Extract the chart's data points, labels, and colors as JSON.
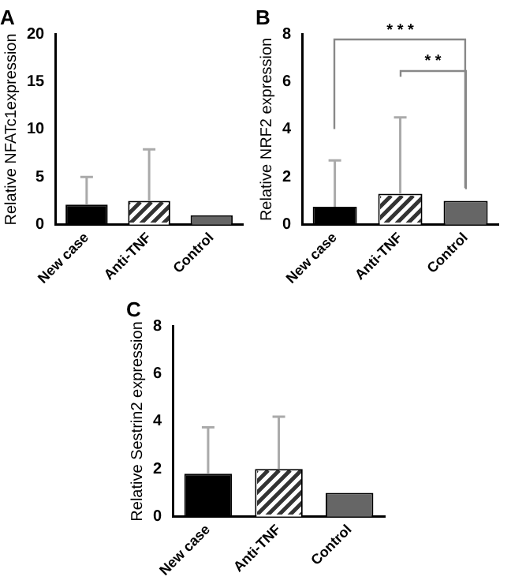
{
  "chart_data": [
    {
      "type": "bar",
      "title": "A",
      "ylabel": "Relative NFATc1expression",
      "categories": [
        "New case",
        "Anti-TNF",
        "Control"
      ],
      "colors": [
        "#000000",
        "#ffffff",
        "#666666"
      ],
      "values": [
        2.1,
        2.5,
        1.0
      ],
      "errors": [
        [
          2.1,
          5.0
        ],
        [
          2.5,
          7.9
        ],
        null
      ],
      "ylim": [
        0,
        20
      ],
      "yticks": [
        0,
        5,
        10,
        15,
        20
      ],
      "grid": false,
      "legend": false
    },
    {
      "type": "bar",
      "title": "B",
      "ylabel": "Relative NRF2 expression",
      "categories": [
        "New case",
        "Anti-TNF",
        "Control"
      ],
      "colors": [
        "#000000",
        "#ffffff",
        "#666666"
      ],
      "values": [
        0.75,
        1.3,
        1.0
      ],
      "errors": [
        [
          0.75,
          2.7
        ],
        [
          1.3,
          4.5
        ],
        null
      ],
      "ylim": [
        0,
        8
      ],
      "yticks": [
        0,
        2,
        4,
        6,
        8
      ],
      "grid": false,
      "legend": false,
      "annotations": [
        "* * *",
        "* *"
      ]
    },
    {
      "type": "bar",
      "title": "C",
      "ylabel": "Relative Sestrin2 expression",
      "categories": [
        "New case",
        "Anti-TNF",
        "Control"
      ],
      "colors": [
        "#000000",
        "#ffffff",
        "#666666"
      ],
      "values": [
        1.8,
        2.0,
        1.0
      ],
      "errors": [
        [
          1.8,
          3.75
        ],
        [
          2.0,
          4.2
        ],
        null
      ],
      "ylim": [
        0,
        8
      ],
      "yticks": [
        0,
        2,
        4,
        6,
        8
      ],
      "grid": false,
      "legend": false
    }
  ]
}
